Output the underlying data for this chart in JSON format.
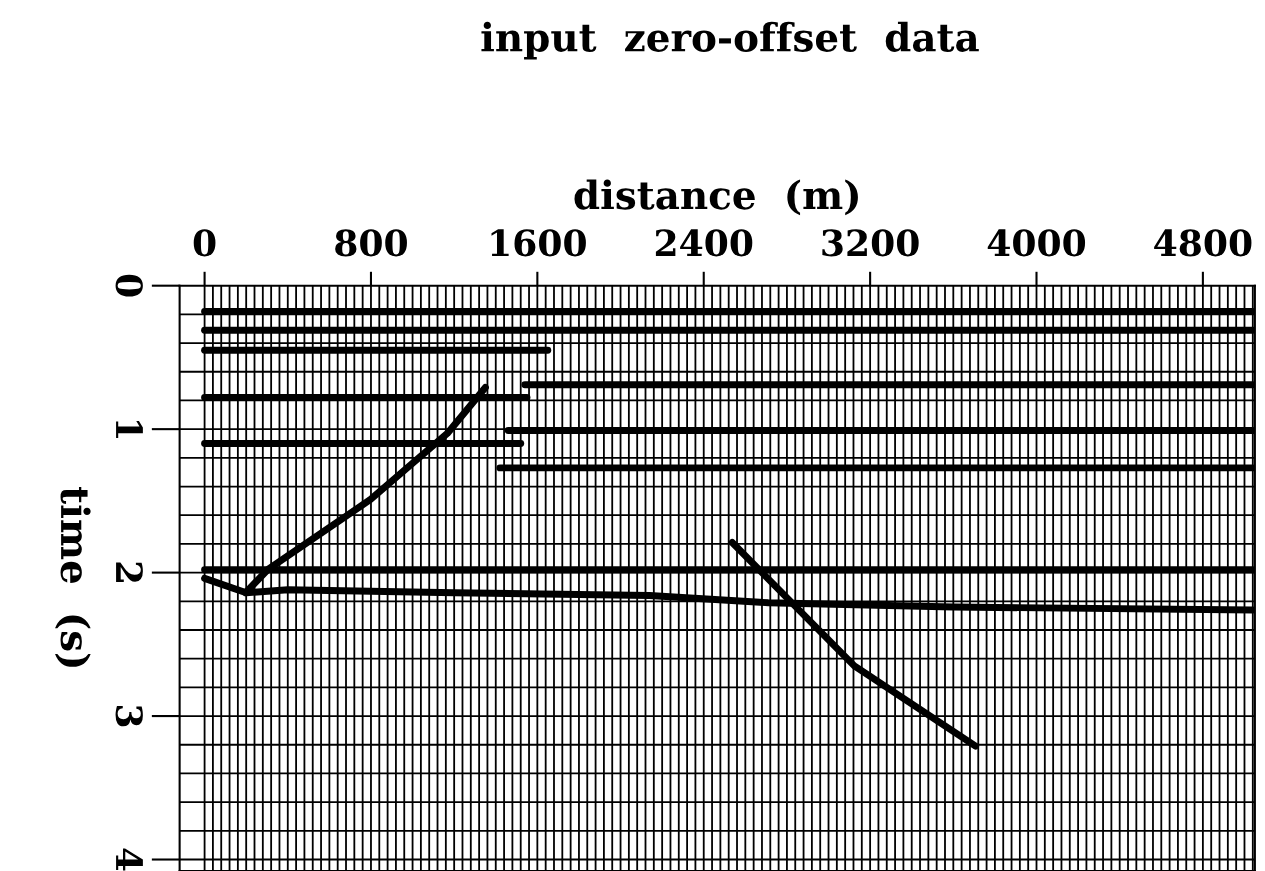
{
  "chart_data": {
    "type": "line",
    "title": "input  zero-offset  data",
    "xlabel": "distance  (m)",
    "ylabel": "time  (s)",
    "xlim": [
      -120,
      5050
    ],
    "ylim": [
      4.08,
      0
    ],
    "xticks": [
      0,
      800,
      1600,
      2400,
      3200,
      4000,
      4800
    ],
    "yticks": [
      0,
      1,
      2,
      3,
      4
    ],
    "series": [
      {
        "color": "#000000",
        "x": [
          0,
          5040
        ],
        "values": [
          0.18,
          0.18
        ]
      },
      {
        "color": "#000000",
        "x": [
          0,
          5040
        ],
        "values": [
          0.31,
          0.31
        ]
      },
      {
        "color": "#000000",
        "x": [
          0,
          1650
        ],
        "values": [
          0.45,
          0.45
        ]
      },
      {
        "color": "#000000",
        "x": [
          0,
          1550
        ],
        "values": [
          0.78,
          0.78
        ]
      },
      {
        "color": "#000000",
        "x": [
          0,
          1520
        ],
        "values": [
          1.1,
          1.1
        ]
      },
      {
        "color": "#000000",
        "x": [
          1540,
          5040
        ],
        "values": [
          0.69,
          0.69
        ]
      },
      {
        "color": "#000000",
        "x": [
          1460,
          5040
        ],
        "values": [
          1.01,
          1.01
        ]
      },
      {
        "color": "#000000",
        "x": [
          1420,
          5040
        ],
        "values": [
          1.27,
          1.27
        ]
      },
      {
        "color": "#000000",
        "x": [
          0,
          5040
        ],
        "values": [
          1.98,
          1.98
        ]
      },
      {
        "color": "#000000",
        "x": [
          0,
          200,
          400,
          1200,
          2140,
          2710,
          3600,
          5040
        ],
        "values": [
          2.04,
          2.14,
          2.12,
          2.14,
          2.16,
          2.21,
          2.24,
          2.26
        ]
      },
      {
        "color": "#000000",
        "x": [
          1350,
          1167,
          798,
          303,
          197
        ],
        "values": [
          0.71,
          1.03,
          1.49,
          1.98,
          2.14
        ]
      },
      {
        "color": "#000000",
        "x": [
          2537,
          3124,
          3707
        ],
        "values": [
          1.79,
          2.65,
          3.21
        ]
      }
    ],
    "ref_lines": [
      {
        "axis": "y",
        "value": 0.2
      },
      {
        "axis": "y",
        "value": 0.4
      },
      {
        "axis": "y",
        "value": 0.6
      },
      {
        "axis": "y",
        "value": 0.8
      },
      {
        "axis": "y",
        "value": 1.0
      },
      {
        "axis": "y",
        "value": 1.2
      },
      {
        "axis": "y",
        "value": 1.4
      },
      {
        "axis": "y",
        "value": 1.6
      },
      {
        "axis": "y",
        "value": 1.8
      },
      {
        "axis": "y",
        "value": 2.0
      },
      {
        "axis": "y",
        "value": 2.2
      },
      {
        "axis": "y",
        "value": 2.4
      },
      {
        "axis": "y",
        "value": 2.6
      },
      {
        "axis": "y",
        "value": 2.8
      },
      {
        "axis": "y",
        "value": 3.0
      },
      {
        "axis": "y",
        "value": 3.2
      },
      {
        "axis": "y",
        "value": 3.4
      },
      {
        "axis": "y",
        "value": 3.6
      },
      {
        "axis": "y",
        "value": 3.8
      },
      {
        "axis": "y",
        "value": 4.0
      },
      {
        "axis": "x",
        "value": 0
      },
      {
        "axis": "x",
        "value": 40
      },
      {
        "axis": "x",
        "value": 80
      },
      {
        "axis": "x",
        "value": 120
      },
      {
        "axis": "x",
        "value": 160
      },
      {
        "axis": "x",
        "value": 200
      },
      {
        "axis": "x",
        "value": 240
      },
      {
        "axis": "x",
        "value": 280
      },
      {
        "axis": "x",
        "value": 320
      },
      {
        "axis": "x",
        "value": 360
      },
      {
        "axis": "x",
        "value": 400
      },
      {
        "axis": "x",
        "value": 440
      },
      {
        "axis": "x",
        "value": 480
      },
      {
        "axis": "x",
        "value": 520
      },
      {
        "axis": "x",
        "value": 560
      },
      {
        "axis": "x",
        "value": 600
      },
      {
        "axis": "x",
        "value": 640
      },
      {
        "axis": "x",
        "value": 680
      },
      {
        "axis": "x",
        "value": 720
      },
      {
        "axis": "x",
        "value": 760
      },
      {
        "axis": "x",
        "value": 800
      },
      {
        "axis": "x",
        "value": 840
      },
      {
        "axis": "x",
        "value": 880
      },
      {
        "axis": "x",
        "value": 920
      },
      {
        "axis": "x",
        "value": 960
      },
      {
        "axis": "x",
        "value": 1000
      },
      {
        "axis": "x",
        "value": 1040
      },
      {
        "axis": "x",
        "value": 1080
      },
      {
        "axis": "x",
        "value": 1120
      },
      {
        "axis": "x",
        "value": 1160
      },
      {
        "axis": "x",
        "value": 1200
      },
      {
        "axis": "x",
        "value": 1240
      },
      {
        "axis": "x",
        "value": 1280
      },
      {
        "axis": "x",
        "value": 1320
      },
      {
        "axis": "x",
        "value": 1360
      },
      {
        "axis": "x",
        "value": 1400
      },
      {
        "axis": "x",
        "value": 1440
      },
      {
        "axis": "x",
        "value": 1480
      },
      {
        "axis": "x",
        "value": 1520
      },
      {
        "axis": "x",
        "value": 1560
      },
      {
        "axis": "x",
        "value": 1600
      },
      {
        "axis": "x",
        "value": 1640
      },
      {
        "axis": "x",
        "value": 1680
      },
      {
        "axis": "x",
        "value": 1720
      },
      {
        "axis": "x",
        "value": 1760
      },
      {
        "axis": "x",
        "value": 1800
      },
      {
        "axis": "x",
        "value": 1840
      },
      {
        "axis": "x",
        "value": 1880
      },
      {
        "axis": "x",
        "value": 1920
      },
      {
        "axis": "x",
        "value": 1960
      },
      {
        "axis": "x",
        "value": 2000
      },
      {
        "axis": "x",
        "value": 2040
      },
      {
        "axis": "x",
        "value": 2080
      },
      {
        "axis": "x",
        "value": 2120
      },
      {
        "axis": "x",
        "value": 2160
      },
      {
        "axis": "x",
        "value": 2200
      },
      {
        "axis": "x",
        "value": 2240
      },
      {
        "axis": "x",
        "value": 2280
      },
      {
        "axis": "x",
        "value": 2320
      },
      {
        "axis": "x",
        "value": 2360
      },
      {
        "axis": "x",
        "value": 2400
      },
      {
        "axis": "x",
        "value": 2440
      },
      {
        "axis": "x",
        "value": 2480
      },
      {
        "axis": "x",
        "value": 2520
      },
      {
        "axis": "x",
        "value": 2560
      },
      {
        "axis": "x",
        "value": 2600
      },
      {
        "axis": "x",
        "value": 2640
      },
      {
        "axis": "x",
        "value": 2680
      },
      {
        "axis": "x",
        "value": 2720
      },
      {
        "axis": "x",
        "value": 2760
      },
      {
        "axis": "x",
        "value": 2800
      },
      {
        "axis": "x",
        "value": 2840
      },
      {
        "axis": "x",
        "value": 2880
      },
      {
        "axis": "x",
        "value": 2920
      },
      {
        "axis": "x",
        "value": 2960
      },
      {
        "axis": "x",
        "value": 3000
      },
      {
        "axis": "x",
        "value": 3040
      },
      {
        "axis": "x",
        "value": 3080
      },
      {
        "axis": "x",
        "value": 3120
      },
      {
        "axis": "x",
        "value": 3160
      },
      {
        "axis": "x",
        "value": 3200
      },
      {
        "axis": "x",
        "value": 3240
      },
      {
        "axis": "x",
        "value": 3280
      },
      {
        "axis": "x",
        "value": 3320
      },
      {
        "axis": "x",
        "value": 3360
      },
      {
        "axis": "x",
        "value": 3400
      },
      {
        "axis": "x",
        "value": 3440
      },
      {
        "axis": "x",
        "value": 3480
      },
      {
        "axis": "x",
        "value": 3520
      },
      {
        "axis": "x",
        "value": 3560
      },
      {
        "axis": "x",
        "value": 3600
      },
      {
        "axis": "x",
        "value": 3640
      },
      {
        "axis": "x",
        "value": 3680
      },
      {
        "axis": "x",
        "value": 3720
      },
      {
        "axis": "x",
        "value": 3760
      },
      {
        "axis": "x",
        "value": 3800
      },
      {
        "axis": "x",
        "value": 3840
      },
      {
        "axis": "x",
        "value": 3880
      },
      {
        "axis": "x",
        "value": 3920
      },
      {
        "axis": "x",
        "value": 3960
      },
      {
        "axis": "x",
        "value": 4000
      },
      {
        "axis": "x",
        "value": 4040
      },
      {
        "axis": "x",
        "value": 4080
      },
      {
        "axis": "x",
        "value": 4120
      },
      {
        "axis": "x",
        "value": 4160
      },
      {
        "axis": "x",
        "value": 4200
      },
      {
        "axis": "x",
        "value": 4240
      },
      {
        "axis": "x",
        "value": 4280
      },
      {
        "axis": "x",
        "value": 4320
      },
      {
        "axis": "x",
        "value": 4360
      },
      {
        "axis": "x",
        "value": 4400
      },
      {
        "axis": "x",
        "value": 4440
      },
      {
        "axis": "x",
        "value": 4480
      },
      {
        "axis": "x",
        "value": 4520
      },
      {
        "axis": "x",
        "value": 4560
      },
      {
        "axis": "x",
        "value": 4600
      },
      {
        "axis": "x",
        "value": 4640
      },
      {
        "axis": "x",
        "value": 4680
      },
      {
        "axis": "x",
        "value": 4720
      },
      {
        "axis": "x",
        "value": 4760
      },
      {
        "axis": "x",
        "value": 4800
      },
      {
        "axis": "x",
        "value": 4840
      },
      {
        "axis": "x",
        "value": 4880
      },
      {
        "axis": "x",
        "value": 4920
      },
      {
        "axis": "x",
        "value": 4960
      },
      {
        "axis": "x",
        "value": 5000
      },
      {
        "axis": "x",
        "value": 5040
      }
    ]
  }
}
